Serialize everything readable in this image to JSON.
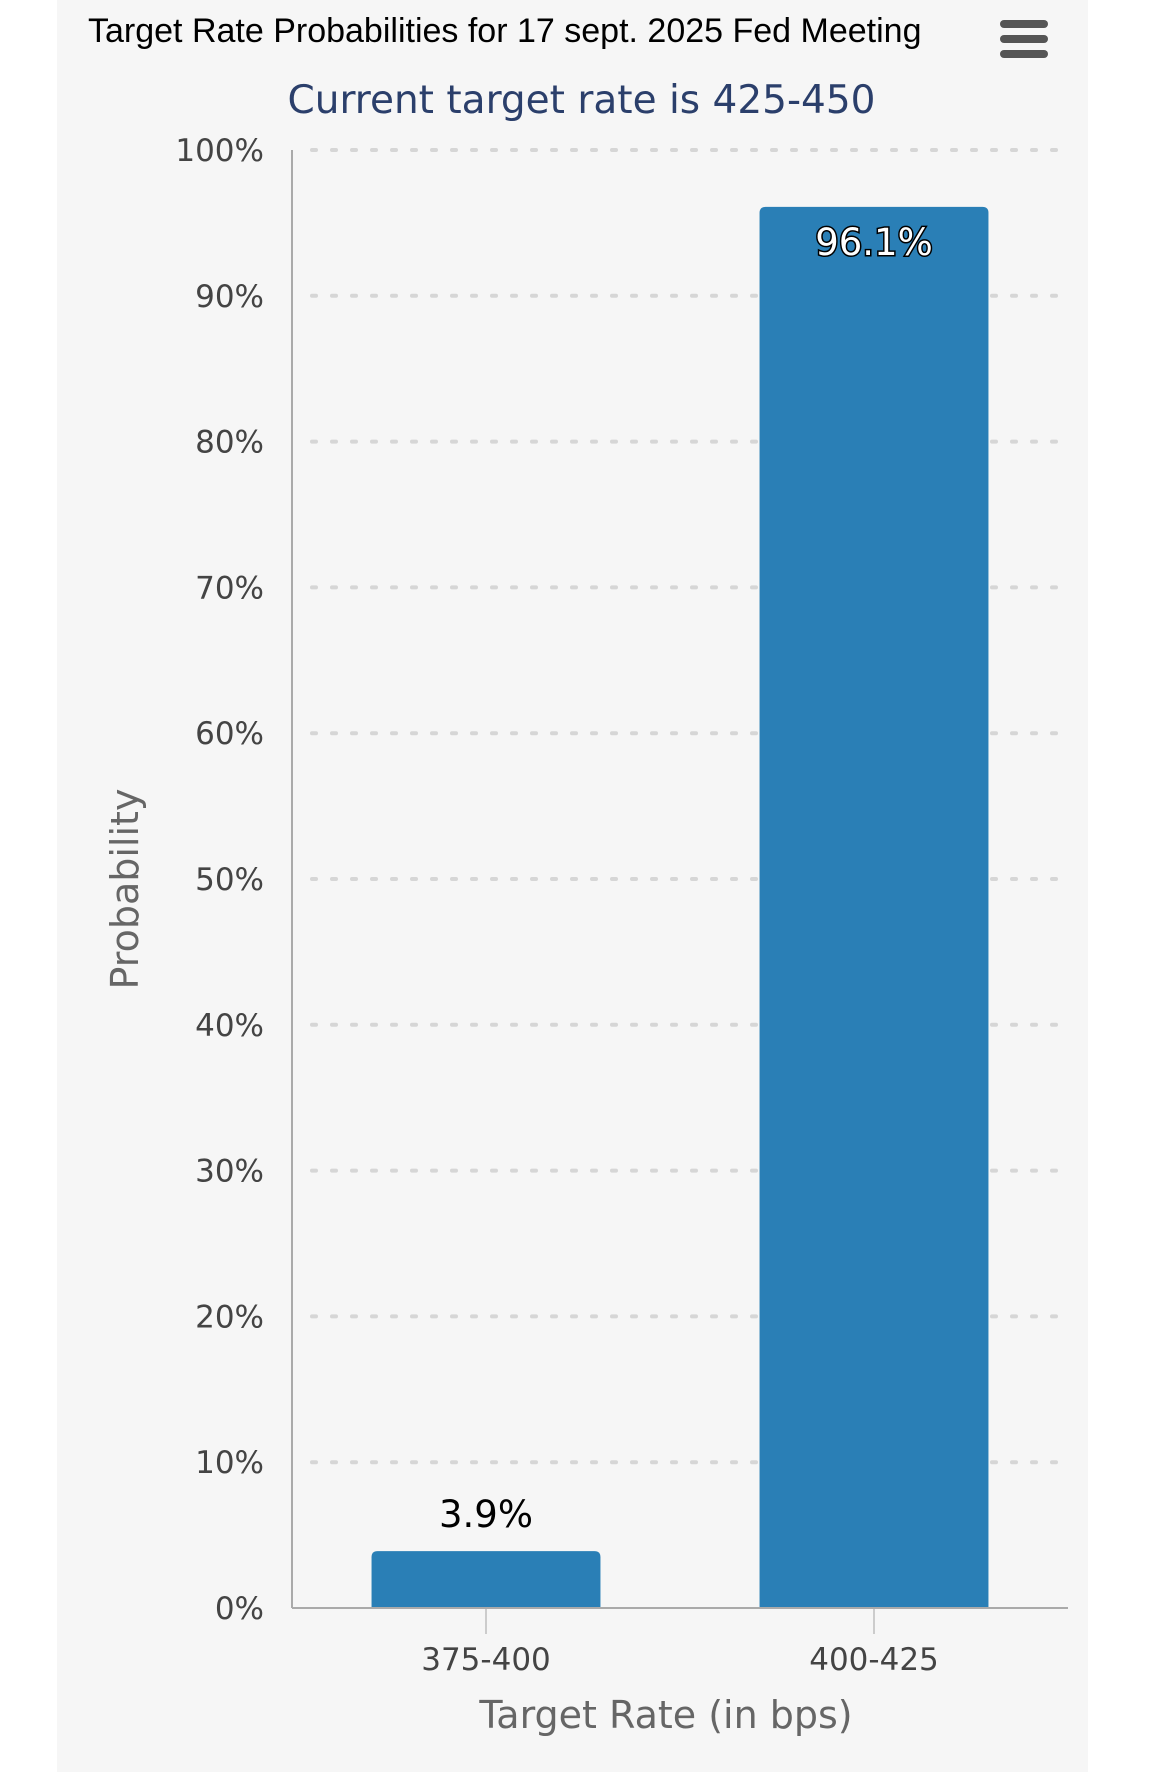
{
  "header": {
    "title": "Target Rate Probabilities for 17 sept. 2025 Fed Meeting",
    "menu_icon": "hamburger-menu-icon"
  },
  "colors": {
    "bar": "#2a7fb6",
    "subtitle": "#2b3f6b",
    "background": "#f6f6f6"
  },
  "chart_data": {
    "type": "bar",
    "title": "Target Rate Probabilities for 17 sept. 2025 Fed Meeting",
    "subtitle": "Current target rate is 425-450",
    "xlabel": "Target Rate (in bps)",
    "ylabel": "Probability",
    "categories": [
      "375-400",
      "400-425"
    ],
    "values": [
      3.9,
      96.1
    ],
    "data_labels": [
      "3.9%",
      "96.1%"
    ],
    "ylim": [
      0,
      100
    ],
    "yticks": [
      0,
      10,
      20,
      30,
      40,
      50,
      60,
      70,
      80,
      90,
      100
    ],
    "ytick_labels": [
      "0%",
      "10%",
      "20%",
      "30%",
      "40%",
      "50%",
      "60%",
      "70%",
      "80%",
      "90%",
      "100%"
    ],
    "grid": "horizontal dotted",
    "legend": "none"
  }
}
